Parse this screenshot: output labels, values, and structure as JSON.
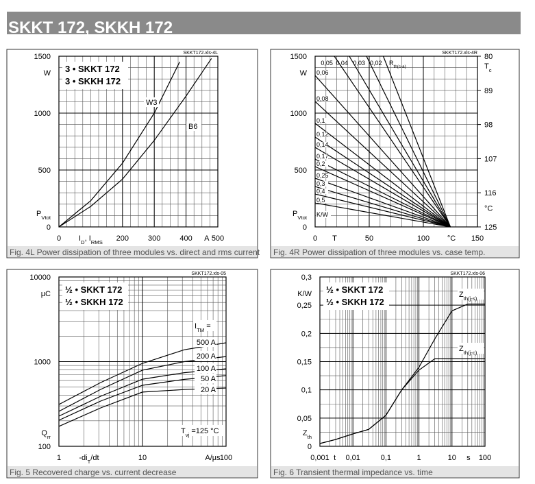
{
  "title": "SKKT 172, SKKH 172",
  "chart_data": [
    {
      "type": "line",
      "caption": "Fig. 4L Power dissipation of three modules vs. direct and rms current",
      "file": "SKKT172.xls-4L",
      "legend_box": [
        "3 • SKKT 172",
        "3 • SKKH 172"
      ],
      "xlabel": [
        "I",
        {
          "sub": "D"
        },
        ", I",
        {
          "sub": "RMS"
        }
      ],
      "xunit": "A",
      "yunit": "W",
      "ylabel": [
        "P",
        {
          "sub": "Vtot"
        }
      ],
      "xlim": [
        0,
        500
      ],
      "ylim": [
        0,
        1500
      ],
      "xticks": [
        0,
        200,
        300,
        400,
        500
      ],
      "yticks": [
        0,
        500,
        1000,
        1500
      ],
      "xgrid_step": 25,
      "ygrid_step": 100,
      "color": "#000000",
      "series": [
        {
          "name": "W3",
          "x": [
            0,
            100,
            200,
            300,
            380
          ],
          "values": [
            0,
            230,
            560,
            1000,
            1450
          ]
        },
        {
          "name": "B6",
          "x": [
            0,
            100,
            200,
            300,
            400,
            480
          ],
          "values": [
            0,
            180,
            420,
            760,
            1150,
            1480
          ]
        }
      ]
    },
    {
      "type": "line",
      "caption": "Fig. 4R Power dissipation of three modules vs. case temp.",
      "file": "SKKT172.xls-4R",
      "xlabel": "T",
      "xunit": "°C",
      "yunit": "W",
      "ylabel": [
        "P",
        {
          "sub": "Vtot"
        }
      ],
      "y2label": [
        "T",
        {
          "sub": "c"
        }
      ],
      "y2unit": "°C",
      "rth_label": [
        "R",
        {
          "sub": "th(c-a)"
        }
      ],
      "rth_unit": "K/W",
      "xlim": [
        0,
        150
      ],
      "ylim": [
        0,
        1500
      ],
      "y2lim": [
        125,
        80
      ],
      "xticks": [
        0,
        50,
        100,
        150
      ],
      "yticks": [
        0,
        500,
        1000,
        1500
      ],
      "y2ticks": [
        80,
        89,
        98,
        107,
        116,
        125
      ],
      "xgrid_step": 10,
      "ygrid_step": 100,
      "color": "#000000",
      "series": [
        {
          "name": "0,05",
          "x": [
            17.7,
            125
          ],
          "values": [
            1500,
            0
          ]
        },
        {
          "name": "0,04",
          "x": [
            31.6,
            125
          ],
          "values": [
            1500,
            0
          ]
        },
        {
          "name": "0,03",
          "x": [
            47.5,
            125
          ],
          "values": [
            1500,
            0
          ]
        },
        {
          "name": "0,02",
          "x": [
            63,
            125
          ],
          "values": [
            1500,
            0
          ]
        },
        {
          "name": "0,06",
          "x": [
            0,
            125
          ],
          "values": [
            1331,
            0
          ]
        },
        {
          "name": "0,08",
          "x": [
            0,
            125
          ],
          "values": [
            1102,
            0
          ]
        },
        {
          "name": "0,1",
          "x": [
            0,
            125
          ],
          "values": [
            910,
            0
          ]
        },
        {
          "name": "0,12",
          "x": [
            0,
            125
          ],
          "values": [
            789,
            0
          ]
        },
        {
          "name": "0,14",
          "x": [
            0,
            125
          ],
          "values": [
            699,
            0
          ]
        },
        {
          "name": "0,17",
          "x": [
            0,
            125
          ],
          "values": [
            596,
            0
          ]
        },
        {
          "name": "0,2",
          "x": [
            0,
            125
          ],
          "values": [
            530,
            0
          ]
        },
        {
          "name": "0,25",
          "x": [
            0,
            125
          ],
          "values": [
            428,
            0
          ]
        },
        {
          "name": "0,3",
          "x": [
            0,
            125
          ],
          "values": [
            355,
            0
          ]
        },
        {
          "name": "0,4",
          "x": [
            0,
            125
          ],
          "values": [
            289,
            0
          ]
        },
        {
          "name": "0,5",
          "x": [
            0,
            125
          ],
          "values": [
            211,
            0
          ]
        }
      ]
    },
    {
      "type": "line",
      "caption": "Fig. 5 Recovered charge vs. current decrease",
      "file": "SKKT172.xls-05",
      "legend_box": [
        "½ • SKKT 172",
        "½ • SKKH 172"
      ],
      "xlabel": [
        "-di",
        {
          "sub": "T"
        },
        "/dt"
      ],
      "xunit": "A/µs",
      "yunit": "µC",
      "ylabel": [
        "Q",
        {
          "sub": "rr"
        }
      ],
      "series_title": [
        "I",
        {
          "sub": "TM"
        },
        " ="
      ],
      "condition": [
        "T",
        {
          "sub": "vj"
        },
        " =125 °C"
      ],
      "xlog": true,
      "ylog": true,
      "xlim": [
        1,
        100
      ],
      "ylim": [
        100,
        10000
      ],
      "xticks": [
        1,
        10,
        100
      ],
      "yticks": [
        100,
        1000,
        10000
      ],
      "color": "#000000",
      "x": [
        1,
        3.16,
        10,
        31.6,
        100
      ],
      "series": [
        {
          "name": "500 A",
          "values": [
            312,
            566,
            955,
            1380,
            1671
          ]
        },
        {
          "name": "200 A",
          "values": [
            259,
            470,
            793,
            1000,
            1148
          ]
        },
        {
          "name": "100 A",
          "values": [
            227,
            390,
            621,
            741,
            822
          ]
        },
        {
          "name": "50 A",
          "values": [
            203,
            342,
            526,
            617,
            683
          ]
        },
        {
          "name": "20 A",
          "values": [
            172,
            284,
            437,
            468,
            488
          ]
        }
      ]
    },
    {
      "type": "line",
      "caption": "Fig. 6 Transient thermal impedance vs. time",
      "file": "SKKT172.xls-06",
      "legend_box": [
        "½ • SKKT 172",
        "½ • SKKH 172"
      ],
      "xlabel": "t",
      "xunit": "s",
      "yunit": "K/W",
      "ylabel": [
        "Z",
        {
          "sub": "th"
        }
      ],
      "xlog": true,
      "xlim": [
        0.001,
        100
      ],
      "ylim": [
        0,
        0.3
      ],
      "xticks": [
        {
          "value": 0.001,
          "label": "0,001"
        },
        {
          "value": 0.01,
          "label": "0,01"
        },
        {
          "value": 0.1,
          "label": "0,1"
        },
        1,
        10,
        100
      ],
      "yticks": [
        0,
        {
          "value": 0.05,
          "label": "0,05"
        },
        {
          "value": 0.1,
          "label": "0,1"
        },
        {
          "value": 0.15,
          "label": "0,15"
        },
        {
          "value": 0.2,
          "label": "0,2"
        },
        {
          "value": 0.25,
          "label": "0,25"
        },
        {
          "value": 0.3,
          "label": "0,3"
        }
      ],
      "ygrid_step": 0.025,
      "color": "#000000",
      "x": [
        0.001,
        0.003,
        0.01,
        0.03,
        0.1,
        0.3,
        1,
        3,
        10,
        30,
        100
      ],
      "series": [
        {
          "name": [
            "Z",
            {
              "sub": "th(j-s)"
            }
          ],
          "values": [
            0.005,
            0.012,
            0.022,
            0.03,
            0.055,
            0.1,
            0.14,
            0.19,
            0.24,
            0.252,
            0.252
          ]
        },
        {
          "name": [
            "Z",
            {
              "sub": "th(j-c)"
            }
          ],
          "values": [
            0.005,
            0.012,
            0.022,
            0.03,
            0.055,
            0.1,
            0.135,
            0.155,
            0.155,
            0.155,
            0.155
          ]
        }
      ]
    }
  ]
}
